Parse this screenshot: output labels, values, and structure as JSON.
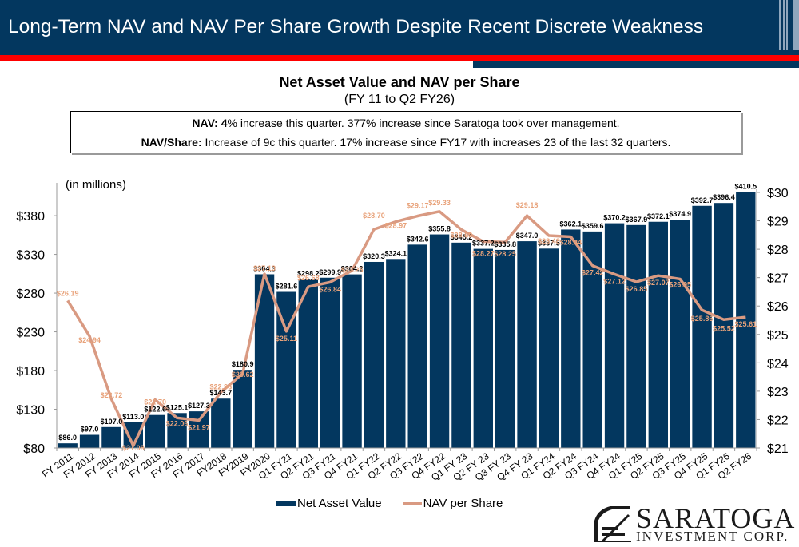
{
  "header": {
    "title": "Long-Term NAV and NAV Per Share Growth Despite Recent Discrete Weakness"
  },
  "summary": {
    "nav_label": "NAV:",
    "nav_bold": "4",
    "nav_text": "% increase this quarter. 377% increase since Saratoga took over management.",
    "nav_share_label": "NAV/Share:",
    "nav_share_text": " Increase of 9c this quarter. 17% increase since FY17 with increases 23 of the last 32 quarters."
  },
  "colors": {
    "bar": "#03375f",
    "line": "#d99a82",
    "line_label": "#e8a27a",
    "header": "#03375f",
    "accent_red": "#ff0000"
  },
  "logo": {
    "name": "SARATOGA",
    "sub": "INVESTMENT CORP."
  },
  "chart_data": {
    "type": "bar",
    "title": "Net Asset Value and NAV per Share",
    "subtitle": "(FY 11 to Q2 FY26)",
    "units_label": "(in millions)",
    "xlabel": "",
    "ylabel": "",
    "categories": [
      "FY 2011",
      "FY 2012",
      "FY 2013",
      "FY 2014",
      "FY 2015",
      "FY 2016",
      "FY 2017",
      "FY2018",
      "FY2019",
      "FY2020",
      "Q1 FY21",
      "Q2 FY21",
      "Q3 FY21",
      "Q4 FY21",
      "Q1 FY22",
      "Q2 FY22",
      "Q3 FY22",
      "Q4 FY22",
      "Q1 FY 23",
      "Q2 FY 23",
      "Q3 FY 23",
      "Q4 FY 23",
      "Q1 FY24",
      "Q2 FY24",
      "Q3 FY24",
      "Q4 FY24",
      "Q1 FY25",
      "Q2 FY25",
      "Q3 FY25",
      "Q4 FY25",
      "Q1 FY26",
      "Q2 FY26"
    ],
    "series": [
      {
        "name": "Net Asset Value",
        "type": "bar",
        "axis": "left",
        "values": [
          86.0,
          97.0,
          107.0,
          113.0,
          122.6,
          125.1,
          127.3,
          143.7,
          180.9,
          304.3,
          281.6,
          298.2,
          299.9,
          304.2,
          320.3,
          324.1,
          342.6,
          355.8,
          345.2,
          337.2,
          335.8,
          347.0,
          337.5,
          362.1,
          359.6,
          370.2,
          367.9,
          372.1,
          374.9,
          392.7,
          396.4,
          410.5
        ],
        "labels": [
          "$86.0",
          "$97.0",
          "$107.0",
          "$113.0",
          "$122.6",
          "$125.1",
          "$127.3",
          "$143.7",
          "$180.9",
          "$304.3",
          "$281.6",
          "$298.2",
          "$299.9",
          "$304.2",
          "$320.3",
          "$324.1",
          "$342.6",
          "$355.8",
          "$345.2",
          "$337.2",
          "$335.8",
          "$347.0",
          "$337.5",
          "$362.1",
          "$359.6",
          "$370.2",
          "$367.9",
          "$372.1",
          "$374.9",
          "$392.7",
          "$396.4",
          "$410.5"
        ]
      },
      {
        "name": "NAV per Share",
        "type": "line",
        "axis": "right",
        "values": [
          26.19,
          24.94,
          22.72,
          21.08,
          22.7,
          22.06,
          21.97,
          22.96,
          23.62,
          27.13,
          25.11,
          26.68,
          26.84,
          27.25,
          28.7,
          28.97,
          29.17,
          29.33,
          28.69,
          28.27,
          28.25,
          29.18,
          28.48,
          28.44,
          27.42,
          27.12,
          26.85,
          27.07,
          26.95,
          25.86,
          25.52,
          25.61
        ],
        "labels": [
          "$26.19",
          "$24.94",
          "$22.72",
          "$21.08",
          "$22.70",
          "$22.06",
          "$21.97",
          "$22.96",
          "$23.62",
          "$27.13",
          "$25.11",
          "$26.68",
          "$26.84",
          "$27.25",
          "$28.70",
          "$28.97",
          "$29.17",
          "$29.33",
          "$28.69",
          "$28.27",
          "$28.25",
          "$29.18",
          "$28.48",
          "$28.44",
          "$27.42",
          "$27.12",
          "$26.85",
          "$27.07",
          "$26.95",
          "$25.86",
          "$25.52",
          "$25.61"
        ]
      }
    ],
    "y_left": {
      "min": 80,
      "max": 410,
      "ticks": [
        80,
        130,
        180,
        230,
        280,
        330,
        380
      ],
      "tick_labels": [
        "$80",
        "$130",
        "$180",
        "$230",
        "$280",
        "$330",
        "$380"
      ]
    },
    "y_right": {
      "min": 21,
      "max": 30,
      "ticks": [
        21,
        22,
        23,
        24,
        25,
        26,
        27,
        28,
        29,
        30
      ],
      "tick_labels": [
        "$21",
        "$22",
        "$23",
        "$24",
        "$25",
        "$26",
        "$27",
        "$28",
        "$29",
        "$30"
      ]
    },
    "grid": false,
    "legend": {
      "position": "bottom",
      "entries": [
        "Net Asset Value",
        "NAV per Share"
      ]
    }
  }
}
